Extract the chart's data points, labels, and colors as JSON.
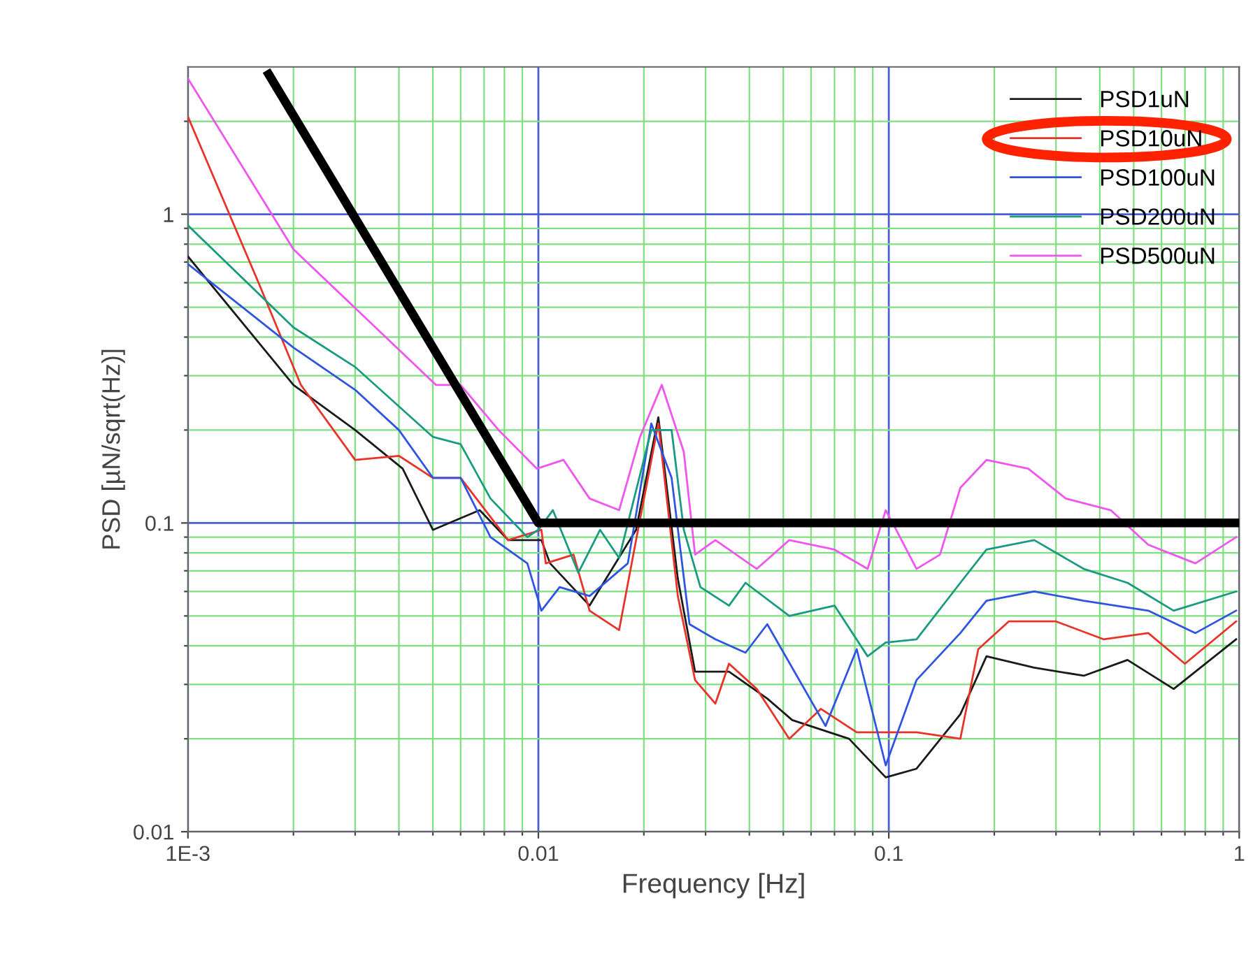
{
  "chart_data": {
    "type": "line",
    "xlabel": "Frequency [Hz]",
    "ylabel": "PSD [µN/sqrt(Hz)]",
    "log": "xy",
    "grid": true,
    "legend": "top right",
    "xlim": [
      0.001,
      1
    ],
    "xticks": [
      {
        "value": 0.001,
        "label": "1E-3"
      },
      {
        "value": 0.002,
        "label": null
      },
      {
        "value": 0.003,
        "label": null
      },
      {
        "value": 0.004,
        "label": null
      },
      {
        "value": 0.005,
        "label": null
      },
      {
        "value": 0.006,
        "label": null
      },
      {
        "value": 0.007,
        "label": null
      },
      {
        "value": 0.008,
        "label": null
      },
      {
        "value": 0.009,
        "label": null
      },
      0.01,
      {
        "value": 0.02,
        "label": null
      },
      {
        "value": 0.03,
        "label": null
      },
      {
        "value": 0.04,
        "label": null
      },
      {
        "value": 0.05,
        "label": null
      },
      {
        "value": 0.06,
        "label": null
      },
      {
        "value": 0.07,
        "label": null
      },
      {
        "value": 0.08,
        "label": null
      },
      {
        "value": 0.09,
        "label": null
      },
      0.1,
      {
        "value": 0.2,
        "label": null
      },
      {
        "value": 0.3,
        "label": null
      },
      {
        "value": 0.4,
        "label": null
      },
      {
        "value": 0.5,
        "label": null
      },
      {
        "value": 0.6,
        "label": null
      },
      {
        "value": 0.7,
        "label": null
      },
      {
        "value": 0.8,
        "label": null
      },
      {
        "value": 0.9,
        "label": null
      },
      1
    ],
    "ylim": [
      0.01,
      3
    ],
    "yticks": [
      0.01,
      {
        "value": 0.02,
        "label": null
      },
      {
        "value": 0.03,
        "label": null
      },
      {
        "value": 0.04,
        "label": null
      },
      {
        "value": 0.05,
        "label": null
      },
      {
        "value": 0.06,
        "label": null
      },
      {
        "value": 0.07,
        "label": null
      },
      {
        "value": 0.08,
        "label": null
      },
      {
        "value": 0.09,
        "label": null
      },
      0.1,
      {
        "value": 0.2,
        "label": null
      },
      {
        "value": 0.3,
        "label": null
      },
      {
        "value": 0.4,
        "label": null
      },
      {
        "value": 0.5,
        "label": null
      },
      {
        "value": 0.6,
        "label": null
      },
      {
        "value": 0.7,
        "label": null
      },
      {
        "value": 0.8,
        "label": null
      },
      {
        "value": 0.9,
        "label": null
      },
      1,
      {
        "value": 2,
        "label": null
      }
    ],
    "series": [
      {
        "name": "PSD1uN",
        "color": "#1a1a1a",
        "x": [
          0.001,
          0.002,
          0.003,
          0.0041,
          0.005,
          0.0068,
          0.0082,
          0.0102,
          0.0108,
          0.014,
          0.019,
          0.022,
          0.025,
          0.028,
          0.035,
          0.045,
          0.053,
          0.077,
          0.098,
          0.12,
          0.16,
          0.19,
          0.26,
          0.36,
          0.48,
          0.65,
          0.98
        ],
        "values": [
          0.73,
          0.28,
          0.2,
          0.15,
          0.095,
          0.11,
          0.088,
          0.088,
          0.074,
          0.054,
          0.095,
          0.22,
          0.066,
          0.033,
          0.033,
          0.027,
          0.023,
          0.02,
          0.015,
          0.016,
          0.024,
          0.037,
          0.034,
          0.032,
          0.036,
          0.029,
          0.042
        ]
      },
      {
        "name": "PSD10uN",
        "color": "#e8332a",
        "x": [
          0.001,
          0.0016,
          0.0021,
          0.003,
          0.004,
          0.005,
          0.006,
          0.0082,
          0.0102,
          0.0105,
          0.0126,
          0.014,
          0.017,
          0.019,
          0.022,
          0.025,
          0.028,
          0.032,
          0.035,
          0.042,
          0.052,
          0.064,
          0.081,
          0.098,
          0.12,
          0.16,
          0.18,
          0.22,
          0.3,
          0.41,
          0.55,
          0.7,
          0.98
        ],
        "values": [
          2.07,
          0.59,
          0.28,
          0.16,
          0.165,
          0.14,
          0.14,
          0.088,
          0.095,
          0.074,
          0.079,
          0.052,
          0.045,
          0.088,
          0.21,
          0.058,
          0.031,
          0.026,
          0.035,
          0.029,
          0.02,
          0.025,
          0.021,
          0.021,
          0.021,
          0.02,
          0.039,
          0.048,
          0.048,
          0.042,
          0.044,
          0.035,
          0.048
        ]
      },
      {
        "name": "PSD100uN",
        "color": "#2f55e0",
        "x": [
          0.001,
          0.002,
          0.003,
          0.004,
          0.005,
          0.006,
          0.0073,
          0.0093,
          0.0102,
          0.0115,
          0.014,
          0.018,
          0.021,
          0.024,
          0.027,
          0.032,
          0.039,
          0.045,
          0.066,
          0.081,
          0.098,
          0.12,
          0.16,
          0.19,
          0.26,
          0.36,
          0.55,
          0.75,
          0.98
        ],
        "values": [
          0.69,
          0.37,
          0.27,
          0.2,
          0.14,
          0.14,
          0.09,
          0.074,
          0.052,
          0.062,
          0.058,
          0.074,
          0.21,
          0.14,
          0.047,
          0.042,
          0.038,
          0.047,
          0.022,
          0.039,
          0.0164,
          0.031,
          0.044,
          0.056,
          0.06,
          0.056,
          0.052,
          0.044,
          0.052
        ]
      },
      {
        "name": "PSD200uN",
        "color": "#1a9a80",
        "x": [
          0.001,
          0.002,
          0.003,
          0.005,
          0.006,
          0.0073,
          0.0093,
          0.01,
          0.011,
          0.013,
          0.015,
          0.017,
          0.021,
          0.024,
          0.026,
          0.029,
          0.035,
          0.039,
          0.052,
          0.07,
          0.087,
          0.098,
          0.12,
          0.16,
          0.19,
          0.26,
          0.36,
          0.48,
          0.65,
          0.98
        ],
        "values": [
          0.92,
          0.43,
          0.32,
          0.19,
          0.18,
          0.12,
          0.09,
          0.095,
          0.11,
          0.069,
          0.095,
          0.077,
          0.2,
          0.2,
          0.095,
          0.062,
          0.054,
          0.064,
          0.05,
          0.054,
          0.037,
          0.041,
          0.042,
          0.064,
          0.082,
          0.088,
          0.071,
          0.064,
          0.052,
          0.06
        ]
      },
      {
        "name": "PSD500uN",
        "color": "#f055f0",
        "x": [
          0.001,
          0.002,
          0.0051,
          0.006,
          0.0077,
          0.0099,
          0.0118,
          0.014,
          0.017,
          0.0195,
          0.0225,
          0.026,
          0.028,
          0.032,
          0.042,
          0.052,
          0.07,
          0.087,
          0.098,
          0.105,
          0.12,
          0.14,
          0.16,
          0.19,
          0.25,
          0.32,
          0.43,
          0.55,
          0.75,
          0.98
        ],
        "values": [
          2.75,
          0.77,
          0.28,
          0.28,
          0.2,
          0.15,
          0.16,
          0.12,
          0.11,
          0.19,
          0.28,
          0.17,
          0.079,
          0.088,
          0.071,
          0.088,
          0.082,
          0.071,
          0.11,
          0.095,
          0.071,
          0.079,
          0.13,
          0.16,
          0.15,
          0.12,
          0.11,
          0.085,
          0.074,
          0.09
        ]
      },
      {
        "color": "#000000",
        "x": [
          0.0017,
          0.01,
          1
        ],
        "values": [
          2.84,
          0.1,
          0.1
        ]
      }
    ]
  }
}
